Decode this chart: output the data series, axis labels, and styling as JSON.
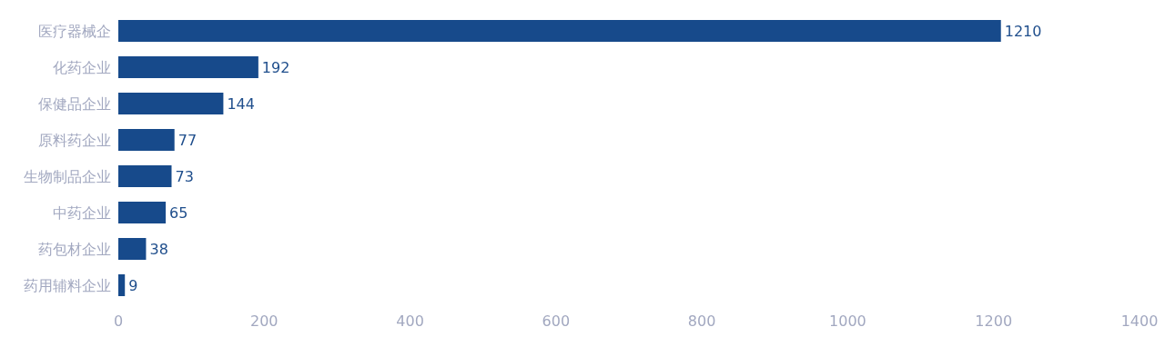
{
  "chart_data": {
    "type": "bar",
    "orientation": "horizontal",
    "categories": [
      "医疗器械企",
      "化药企业",
      "保健品企业",
      "原料药企业",
      "生物制品企业",
      "中药企业",
      "药包材企业",
      "药用辅料企业"
    ],
    "values": [
      1210,
      192,
      144,
      77,
      73,
      65,
      38,
      9
    ],
    "color": "#174a8b",
    "xlim": [
      0,
      1400
    ],
    "xticks": [
      0,
      200,
      400,
      600,
      800,
      1000,
      1200,
      1400
    ],
    "grid": false,
    "data_labels": true
  }
}
